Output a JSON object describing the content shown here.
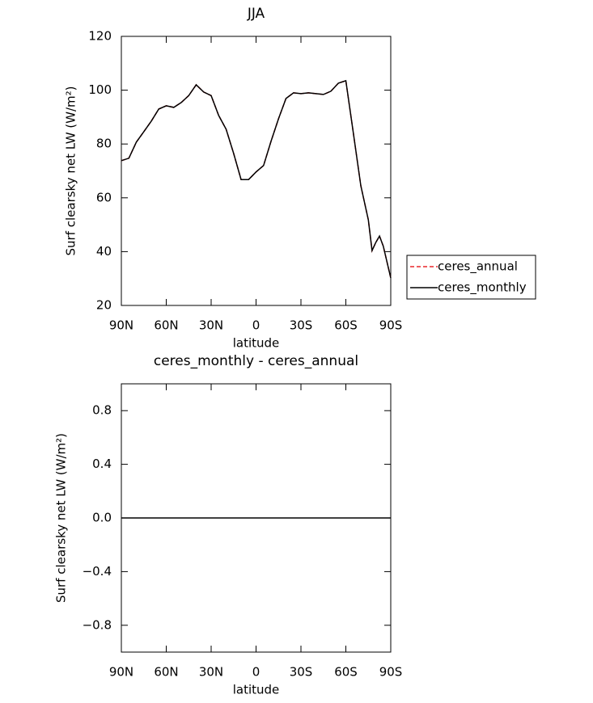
{
  "chart_data": [
    {
      "type": "line",
      "title": "JJA",
      "xlabel": "latitude",
      "ylabel": "Surf clearsky net LW (W/m²)",
      "x": [
        90,
        85,
        80,
        75,
        70,
        65,
        60,
        55,
        50,
        45,
        40,
        35,
        30,
        25,
        20,
        15,
        10,
        5,
        0,
        -5,
        -10,
        -15,
        -20,
        -25,
        -30,
        -35,
        -40,
        -45,
        -50,
        -55,
        -60,
        -65,
        -70,
        -75,
        -77.5,
        -80,
        -82.5,
        -85,
        -90
      ],
      "series": [
        {
          "name": "ceres_annual",
          "color": "#e8262a",
          "dash": true,
          "values": [
            73.8,
            74.7,
            80.7,
            84.6,
            88.5,
            93,
            94.2,
            93.6,
            95.4,
            98,
            102,
            99.3,
            98,
            90.6,
            85.5,
            76.5,
            66.8,
            66.8,
            69.6,
            72,
            81,
            89.4,
            96.9,
            99,
            98.7,
            99,
            98.7,
            98.4,
            99.6,
            102.6,
            103.5,
            84,
            64.5,
            51.8,
            40.4,
            43.4,
            45.8,
            42,
            30.2
          ]
        },
        {
          "name": "ceres_monthly",
          "color": "#000000",
          "dash": false,
          "values": [
            73.8,
            74.7,
            80.7,
            84.6,
            88.5,
            93,
            94.2,
            93.6,
            95.4,
            98,
            102,
            99.3,
            98,
            90.6,
            85.5,
            76.5,
            66.8,
            66.8,
            69.6,
            72,
            81,
            89.4,
            96.9,
            99,
            98.7,
            99,
            98.7,
            98.4,
            99.6,
            102.6,
            103.5,
            84,
            64.5,
            51.8,
            40.4,
            43.4,
            45.8,
            42,
            30.2
          ]
        }
      ],
      "xlim": [
        90,
        -90
      ],
      "xticks": [
        {
          "value": 90,
          "label": "90N"
        },
        {
          "value": 60,
          "label": "60N"
        },
        {
          "value": 30,
          "label": "30N"
        },
        0,
        {
          "value": -30,
          "label": "30S"
        },
        {
          "value": -60,
          "label": "60S"
        },
        {
          "value": -90,
          "label": "90S"
        }
      ],
      "ylim": [
        20,
        120
      ],
      "yticks": [
        20,
        40,
        60,
        80,
        100,
        120
      ],
      "legend": "right"
    },
    {
      "type": "line",
      "title": "ceres_monthly - ceres_annual",
      "xlabel": "latitude",
      "ylabel": "Surf clearsky net LW (W/m²)",
      "x": [
        90,
        -90
      ],
      "series": [
        {
          "color": "#000000",
          "dash": false,
          "values": [
            0,
            0
          ]
        }
      ],
      "xlim": [
        90,
        -90
      ],
      "xticks": [
        {
          "value": 90,
          "label": "90N"
        },
        {
          "value": 60,
          "label": "60N"
        },
        {
          "value": 30,
          "label": "30N"
        },
        0,
        {
          "value": -30,
          "label": "30S"
        },
        {
          "value": -60,
          "label": "60S"
        },
        {
          "value": -90,
          "label": "90S"
        }
      ],
      "ylim": [
        -1,
        1
      ],
      "yticks": [
        {
          "value": -0.8,
          "label": "−0.8"
        },
        {
          "value": -0.4,
          "label": "−0.4"
        },
        {
          "value": 0,
          "label": "0.0"
        },
        0.4,
        0.8
      ]
    }
  ]
}
